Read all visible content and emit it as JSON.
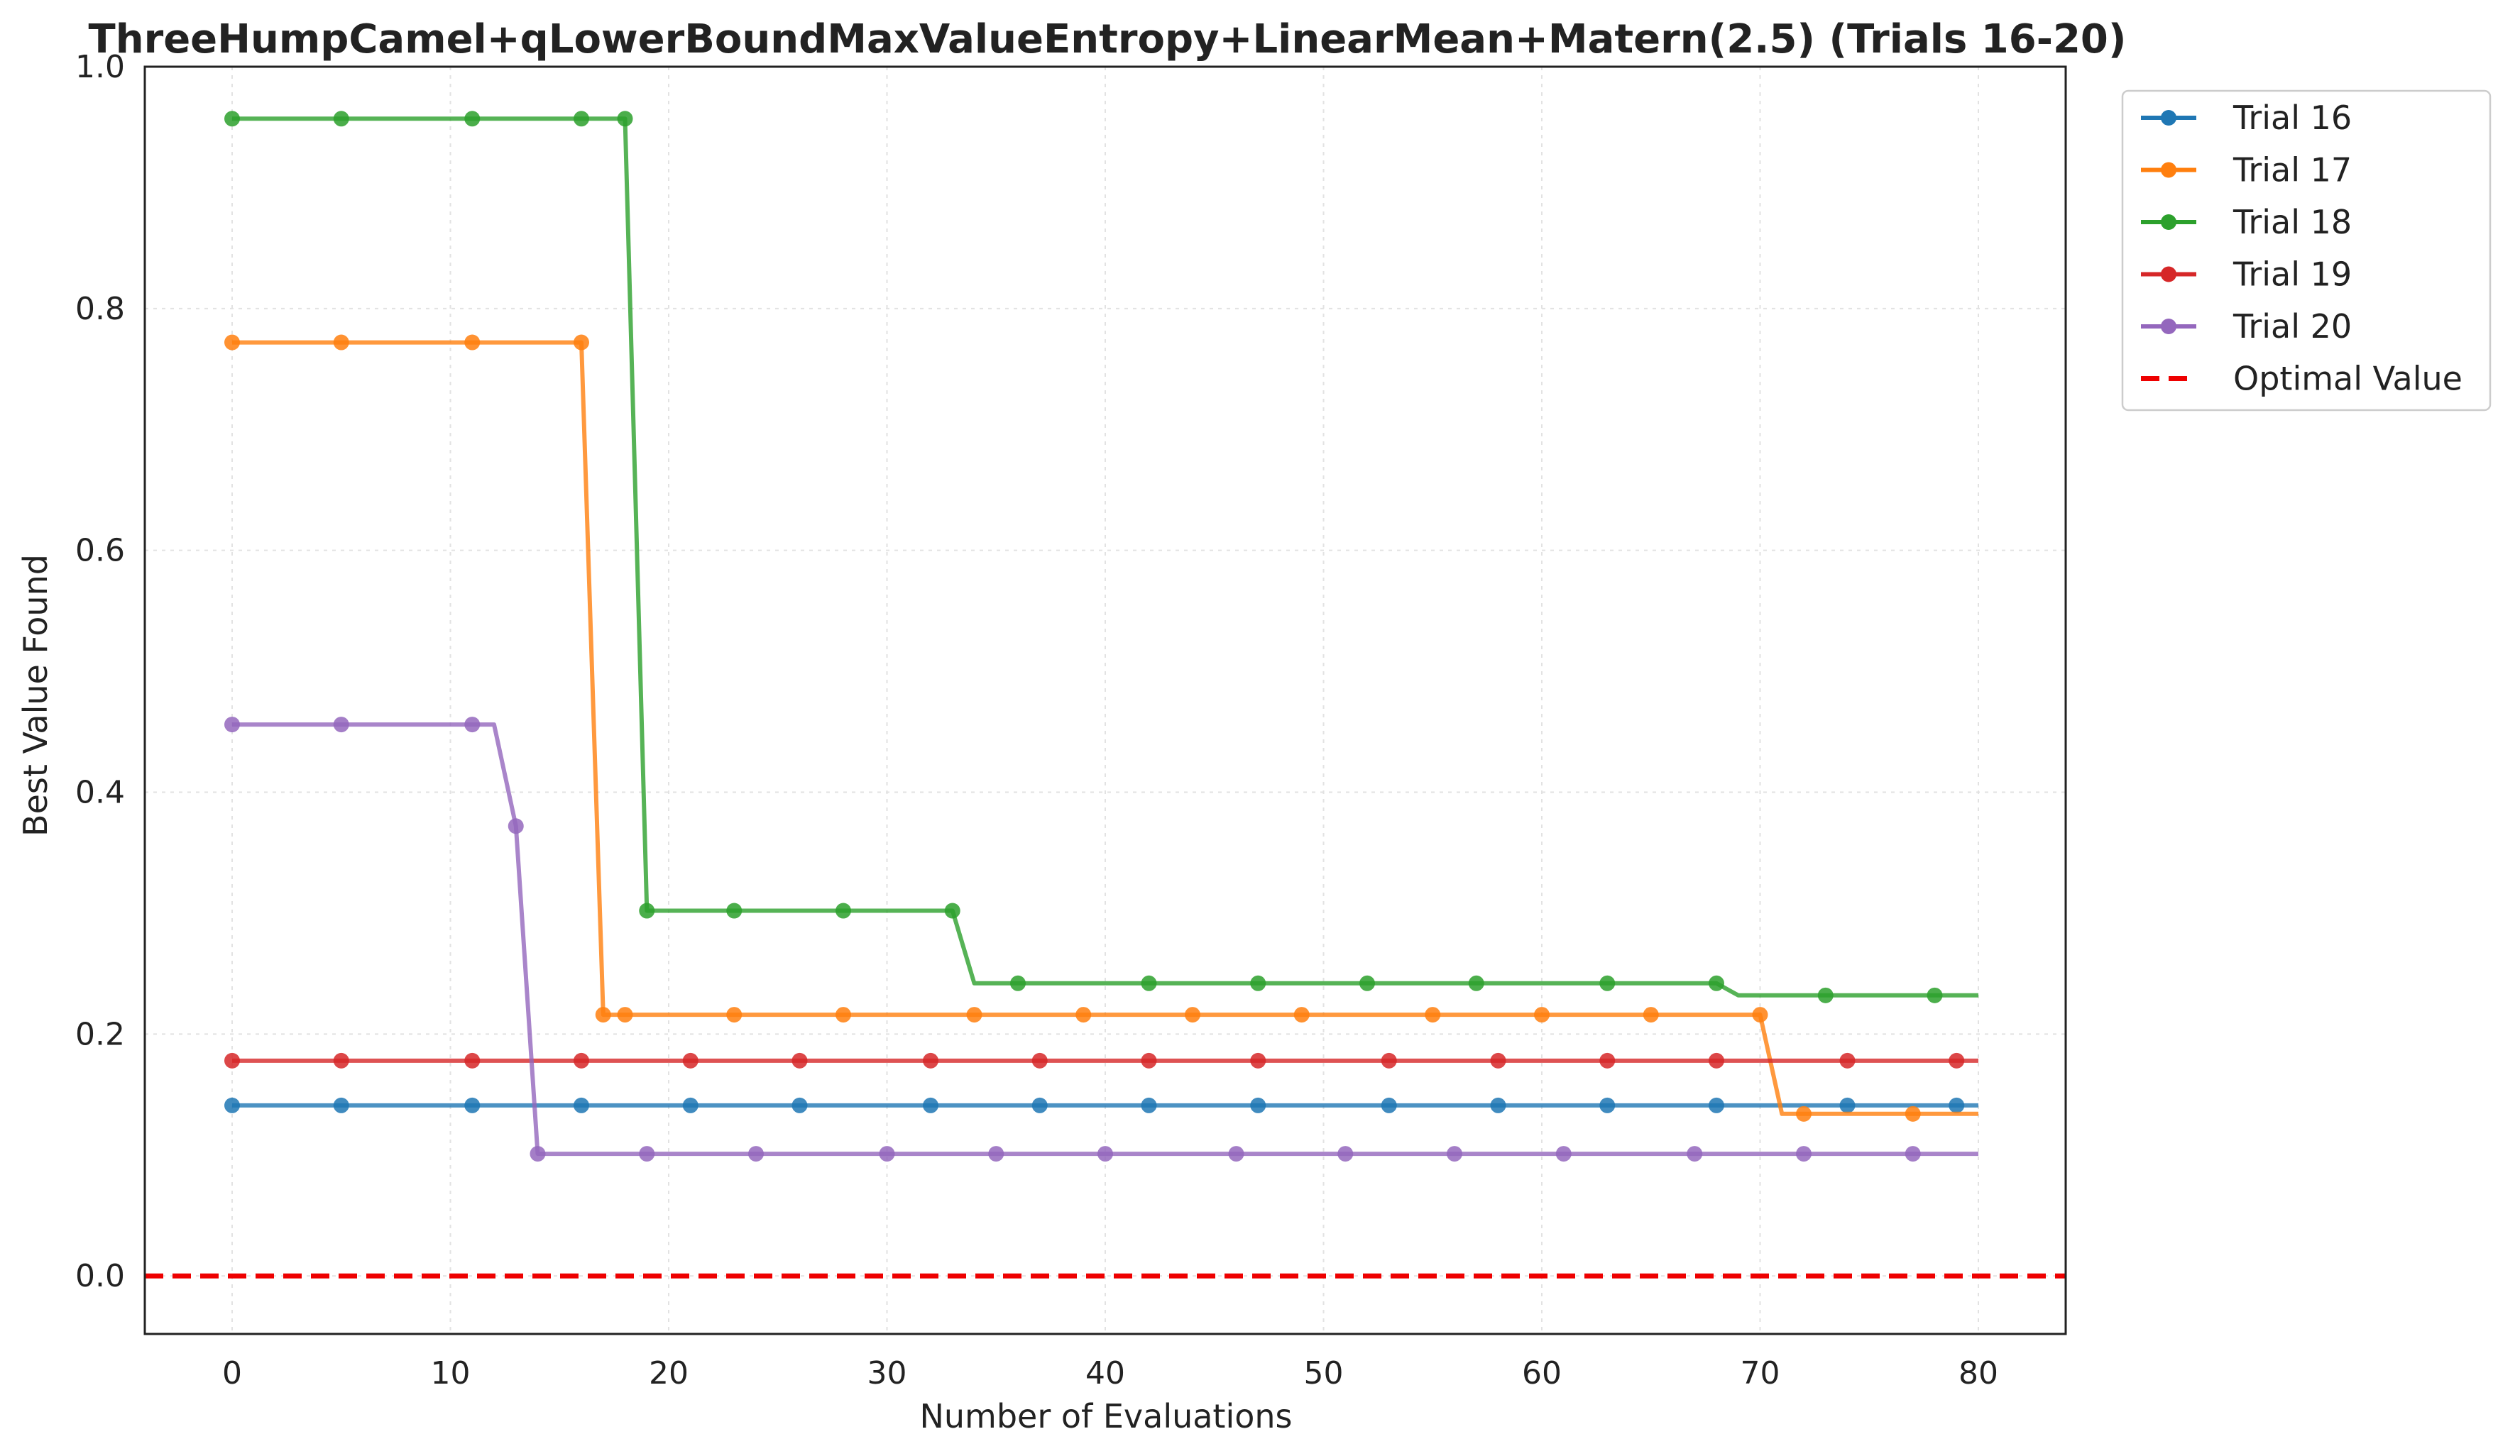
{
  "chart_data": {
    "type": "line",
    "title": "ThreeHumpCamel+qLowerBoundMaxValueEntropy+LinearMean+Matern(2.5) (Trials 16-20)",
    "xlabel": "Number of Evaluations",
    "ylabel": "Best Value Found",
    "xlim": [
      -4,
      84
    ],
    "ylim": [
      -0.048,
      1.0
    ],
    "xticks": [
      0,
      10,
      20,
      30,
      40,
      50,
      60,
      70,
      80
    ],
    "yticks": [
      0.0,
      0.2,
      0.4,
      0.6,
      0.8,
      1.0
    ],
    "xtick_labels": [
      "0",
      "10",
      "20",
      "30",
      "40",
      "50",
      "60",
      "70",
      "80"
    ],
    "ytick_labels": [
      "0.0",
      "0.2",
      "0.4",
      "0.6",
      "0.8",
      "1.0"
    ],
    "grid": true,
    "legend_position": "outside-top-right",
    "series": [
      {
        "name": "Trial 16",
        "color": "#1f77b4",
        "line": [
          [
            0,
            0.141
          ],
          [
            80,
            0.141
          ]
        ],
        "markers": [
          [
            0,
            0.141
          ],
          [
            5,
            0.141
          ],
          [
            11,
            0.141
          ],
          [
            16,
            0.141
          ],
          [
            21,
            0.141
          ],
          [
            26,
            0.141
          ],
          [
            32,
            0.141
          ],
          [
            37,
            0.141
          ],
          [
            42,
            0.141
          ],
          [
            47,
            0.141
          ],
          [
            53,
            0.141
          ],
          [
            58,
            0.141
          ],
          [
            63,
            0.141
          ],
          [
            68,
            0.141
          ],
          [
            74,
            0.141
          ],
          [
            79,
            0.141
          ]
        ]
      },
      {
        "name": "Trial 17",
        "color": "#ff7f0e",
        "line": [
          [
            0,
            0.772
          ],
          [
            16,
            0.772
          ],
          [
            17,
            0.216
          ],
          [
            70,
            0.216
          ],
          [
            71,
            0.134
          ],
          [
            80,
            0.134
          ]
        ],
        "markers": [
          [
            0,
            0.772
          ],
          [
            5,
            0.772
          ],
          [
            11,
            0.772
          ],
          [
            16,
            0.772
          ],
          [
            17,
            0.216
          ],
          [
            18,
            0.216
          ],
          [
            23,
            0.216
          ],
          [
            28,
            0.216
          ],
          [
            34,
            0.216
          ],
          [
            39,
            0.216
          ],
          [
            44,
            0.216
          ],
          [
            49,
            0.216
          ],
          [
            55,
            0.216
          ],
          [
            60,
            0.216
          ],
          [
            65,
            0.216
          ],
          [
            70,
            0.216
          ],
          [
            72,
            0.134
          ],
          [
            77,
            0.134
          ]
        ]
      },
      {
        "name": "Trial 18",
        "color": "#2ca02c",
        "line": [
          [
            0,
            0.957
          ],
          [
            18,
            0.957
          ],
          [
            19,
            0.302
          ],
          [
            33,
            0.302
          ],
          [
            34,
            0.242
          ],
          [
            68,
            0.242
          ],
          [
            69,
            0.232
          ],
          [
            80,
            0.232
          ]
        ],
        "markers": [
          [
            0,
            0.957
          ],
          [
            5,
            0.957
          ],
          [
            11,
            0.957
          ],
          [
            16,
            0.957
          ],
          [
            18,
            0.957
          ],
          [
            19,
            0.302
          ],
          [
            23,
            0.302
          ],
          [
            28,
            0.302
          ],
          [
            33,
            0.302
          ],
          [
            36,
            0.242
          ],
          [
            42,
            0.242
          ],
          [
            47,
            0.242
          ],
          [
            52,
            0.242
          ],
          [
            57,
            0.242
          ],
          [
            63,
            0.242
          ],
          [
            68,
            0.242
          ],
          [
            73,
            0.232
          ],
          [
            78,
            0.232
          ]
        ]
      },
      {
        "name": "Trial 19",
        "color": "#d62728",
        "line": [
          [
            0,
            0.178
          ],
          [
            80,
            0.178
          ]
        ],
        "markers": [
          [
            0,
            0.178
          ],
          [
            5,
            0.178
          ],
          [
            11,
            0.178
          ],
          [
            16,
            0.178
          ],
          [
            21,
            0.178
          ],
          [
            26,
            0.178
          ],
          [
            32,
            0.178
          ],
          [
            37,
            0.178
          ],
          [
            42,
            0.178
          ],
          [
            47,
            0.178
          ],
          [
            53,
            0.178
          ],
          [
            58,
            0.178
          ],
          [
            63,
            0.178
          ],
          [
            68,
            0.178
          ],
          [
            74,
            0.178
          ],
          [
            79,
            0.178
          ]
        ]
      },
      {
        "name": "Trial 20",
        "color": "#9467bd",
        "line": [
          [
            0,
            0.456
          ],
          [
            12,
            0.456
          ],
          [
            13,
            0.372
          ],
          [
            14,
            0.101
          ],
          [
            80,
            0.101
          ]
        ],
        "markers": [
          [
            0,
            0.456
          ],
          [
            5,
            0.456
          ],
          [
            11,
            0.456
          ],
          [
            13,
            0.372
          ],
          [
            14,
            0.101
          ],
          [
            19,
            0.101
          ],
          [
            24,
            0.101
          ],
          [
            30,
            0.101
          ],
          [
            35,
            0.101
          ],
          [
            40,
            0.101
          ],
          [
            46,
            0.101
          ],
          [
            51,
            0.101
          ],
          [
            56,
            0.101
          ],
          [
            61,
            0.101
          ],
          [
            67,
            0.101
          ],
          [
            72,
            0.101
          ],
          [
            77,
            0.101
          ]
        ]
      }
    ],
    "reference_line": {
      "name": "Optimal Value",
      "y": 0.0,
      "color": "#ee0000",
      "style": "dashed"
    }
  }
}
